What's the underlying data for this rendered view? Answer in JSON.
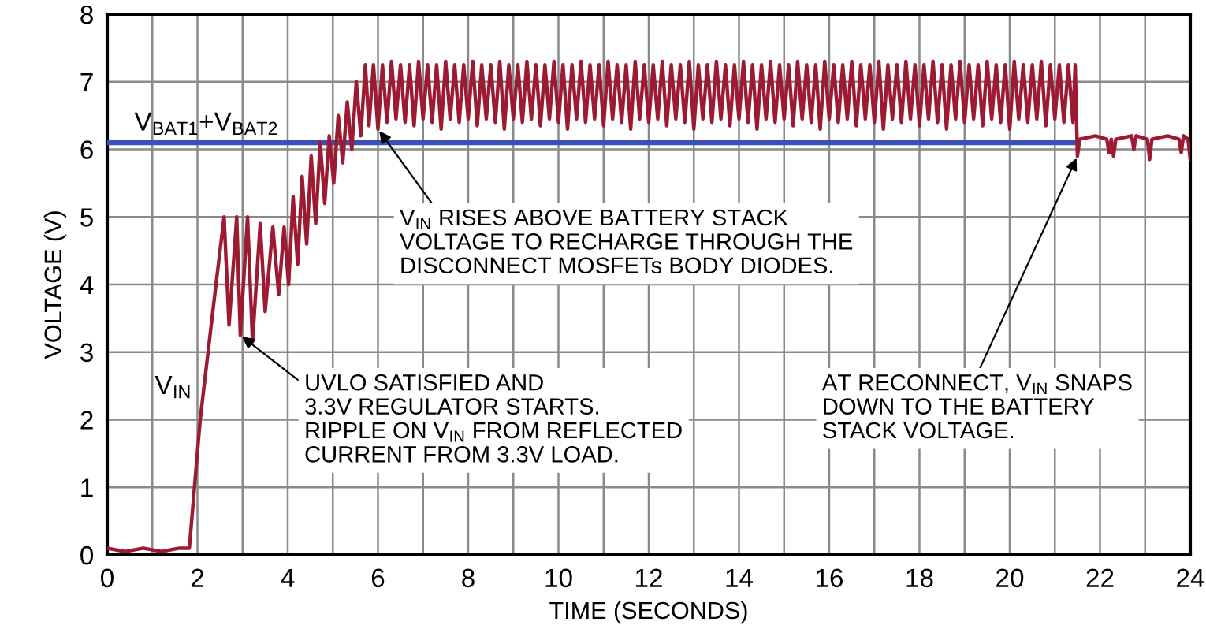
{
  "chart_data": {
    "type": "line",
    "xlabel": "TIME (SECONDS)",
    "ylabel": "VOLTAGE (V)",
    "xlim": [
      0,
      24
    ],
    "ylim": [
      0,
      8
    ],
    "xticks": [
      0,
      {
        "value": 1,
        "label": null
      },
      2,
      {
        "value": 3,
        "label": null
      },
      4,
      {
        "value": 5,
        "label": null
      },
      6,
      {
        "value": 7,
        "label": null
      },
      8,
      {
        "value": 9,
        "label": null
      },
      10,
      {
        "value": 11,
        "label": null
      },
      12,
      {
        "value": 13,
        "label": null
      },
      14,
      {
        "value": 15,
        "label": null
      },
      16,
      {
        "value": 17,
        "label": null
      },
      18,
      {
        "value": 19,
        "label": null
      },
      20,
      {
        "value": 21,
        "label": null
      },
      22,
      {
        "value": 23,
        "label": null
      },
      24
    ],
    "yticks": [
      0,
      1,
      2,
      3,
      4,
      5,
      6,
      7,
      8
    ],
    "grid": true,
    "series": [
      {
        "name": "V$_{BAT1}$+V$_{BAT2}$",
        "color": "#3b4fb8",
        "x": [
          0,
          21.5
        ],
        "values": [
          6.1,
          6.1
        ]
      },
      {
        "name": "V$_{IN}$",
        "color": "#9c1b33",
        "x": [
          0,
          0.4,
          0.8,
          1.2,
          1.6,
          1.82,
          2.06,
          2.41,
          2.59,
          2.7,
          2.87,
          2.95,
          3.11,
          3.22,
          3.39,
          3.5,
          3.67,
          3.8,
          3.92,
          4.02,
          4.12,
          4.22,
          4.32,
          4.42,
          4.52,
          4.62,
          4.72,
          4.82,
          4.92,
          5.02,
          5.12,
          5.22,
          5.32,
          5.42,
          5.52,
          5.62,
          5.72,
          5.8,
          5.9,
          6.0,
          6.1,
          6.2,
          6.3,
          6.4,
          6.5,
          6.6,
          6.7,
          6.8,
          6.9,
          7.0,
          7.1,
          7.2,
          7.3,
          7.4,
          7.5,
          7.6,
          7.7,
          7.8,
          7.9,
          8.0,
          8.1,
          8.2,
          8.3,
          8.4,
          8.5,
          8.6,
          8.7,
          8.8,
          8.9,
          9.0,
          9.1,
          9.2,
          9.3,
          9.4,
          9.5,
          9.6,
          9.7,
          9.8,
          9.9,
          10.0,
          10.1,
          10.2,
          10.3,
          10.4,
          10.5,
          10.6,
          10.7,
          10.8,
          10.9,
          11.0,
          11.1,
          11.2,
          11.3,
          11.4,
          11.5,
          11.6,
          11.7,
          11.8,
          11.9,
          12.0,
          12.1,
          12.2,
          12.3,
          12.4,
          12.5,
          12.6,
          12.7,
          12.8,
          12.9,
          13.0,
          13.1,
          13.2,
          13.3,
          13.4,
          13.5,
          13.6,
          13.7,
          13.8,
          13.9,
          14.0,
          14.1,
          14.2,
          14.3,
          14.4,
          14.5,
          14.6,
          14.7,
          14.8,
          14.9,
          15.0,
          15.1,
          15.2,
          15.3,
          15.4,
          15.5,
          15.6,
          15.7,
          15.8,
          15.9,
          16.0,
          16.1,
          16.2,
          16.3,
          16.4,
          16.5,
          16.6,
          16.7,
          16.8,
          16.9,
          17.0,
          17.1,
          17.2,
          17.3,
          17.4,
          17.5,
          17.6,
          17.7,
          17.8,
          17.9,
          18.0,
          18.1,
          18.2,
          18.3,
          18.4,
          18.5,
          18.6,
          18.7,
          18.8,
          18.9,
          19.0,
          19.1,
          19.2,
          19.3,
          19.4,
          19.5,
          19.6,
          19.7,
          19.8,
          19.9,
          20.0,
          20.1,
          20.2,
          20.3,
          20.4,
          20.5,
          20.6,
          20.7,
          20.8,
          20.9,
          21.0,
          21.1,
          21.2,
          21.3,
          21.4,
          21.45,
          21.5,
          21.55,
          21.9,
          22.15,
          22.2,
          22.25,
          22.3,
          22.35,
          22.7,
          22.75,
          22.8,
          23.05,
          23.1,
          23.15,
          23.5,
          23.75,
          23.8,
          23.85,
          23.95,
          24
        ],
        "values": [
          0.1,
          0.05,
          0.1,
          0.05,
          0.1,
          0.1,
          2.0,
          4.0,
          5.0,
          3.4,
          5.0,
          3.25,
          5.0,
          3.15,
          4.9,
          3.6,
          4.85,
          3.85,
          4.85,
          4.0,
          5.3,
          4.3,
          5.6,
          4.6,
          5.9,
          4.9,
          6.1,
          5.2,
          6.2,
          5.5,
          6.5,
          5.8,
          6.7,
          6.0,
          7.0,
          6.2,
          7.25,
          6.35,
          7.25,
          6.3,
          7.25,
          6.4,
          7.3,
          6.45,
          7.25,
          6.4,
          7.25,
          6.35,
          7.3,
          6.45,
          7.25,
          6.4,
          7.25,
          6.3,
          7.3,
          6.45,
          7.25,
          6.4,
          7.25,
          6.45,
          7.3,
          6.35,
          7.25,
          6.45,
          7.25,
          6.4,
          7.3,
          6.3,
          7.25,
          6.45,
          7.25,
          6.4,
          7.3,
          6.45,
          7.25,
          6.35,
          7.25,
          6.45,
          7.3,
          6.4,
          7.25,
          6.3,
          7.25,
          6.45,
          7.3,
          6.4,
          7.25,
          6.45,
          7.25,
          6.35,
          7.3,
          6.45,
          7.25,
          6.4,
          7.25,
          6.3,
          7.3,
          6.45,
          7.25,
          6.4,
          7.25,
          6.45,
          7.3,
          6.35,
          7.25,
          6.45,
          7.25,
          6.4,
          7.3,
          6.3,
          7.25,
          6.45,
          7.25,
          6.4,
          7.3,
          6.45,
          7.25,
          6.35,
          7.25,
          6.45,
          7.3,
          6.4,
          7.25,
          6.3,
          7.25,
          6.45,
          7.3,
          6.4,
          7.25,
          6.45,
          7.25,
          6.35,
          7.3,
          6.45,
          7.25,
          6.4,
          7.25,
          6.3,
          7.3,
          6.45,
          7.25,
          6.4,
          7.25,
          6.45,
          7.3,
          6.35,
          7.25,
          6.45,
          7.25,
          6.4,
          7.3,
          6.3,
          7.25,
          6.45,
          7.25,
          6.4,
          7.3,
          6.45,
          7.25,
          6.35,
          7.25,
          6.45,
          7.3,
          6.4,
          7.25,
          6.3,
          7.25,
          6.45,
          7.3,
          6.4,
          7.25,
          6.45,
          7.25,
          6.35,
          7.3,
          6.45,
          7.25,
          6.4,
          7.25,
          6.3,
          7.3,
          6.45,
          7.25,
          6.4,
          7.25,
          6.45,
          7.3,
          6.35,
          7.25,
          6.45,
          7.25,
          6.4,
          7.25,
          6.4,
          7.25,
          5.9,
          6.15,
          6.2,
          6.15,
          5.95,
          6.15,
          5.9,
          6.15,
          6.2,
          6.0,
          6.2,
          6.15,
          5.85,
          6.15,
          6.2,
          6.15,
          5.95,
          6.2,
          6.15,
          5.85
        ]
      }
    ],
    "annotations": [
      {
        "text": "V$_{IN}$ RISES ABOVE BATTERY STACK\nVOLTAGE TO RECHARGE THROUGH THE\nDISCONNECT MOSFETs BODY DIODES.",
        "x": 6.0,
        "y": 6.3
      },
      {
        "text": "UVLO SATISFIED AND\n3.3V REGULATOR STARTS.\nRIPPLE ON V$_{IN}$ FROM REFLECTED\nCURRENT FROM 3.3V LOAD.",
        "x": 2.95,
        "y": 3.25
      },
      {
        "text": "AT RECONNECT, V$_{IN}$ SNAPS\nDOWN TO THE BATTERY\nSTACK VOLTAGE.",
        "x": 21.5,
        "y": 5.9
      }
    ]
  }
}
